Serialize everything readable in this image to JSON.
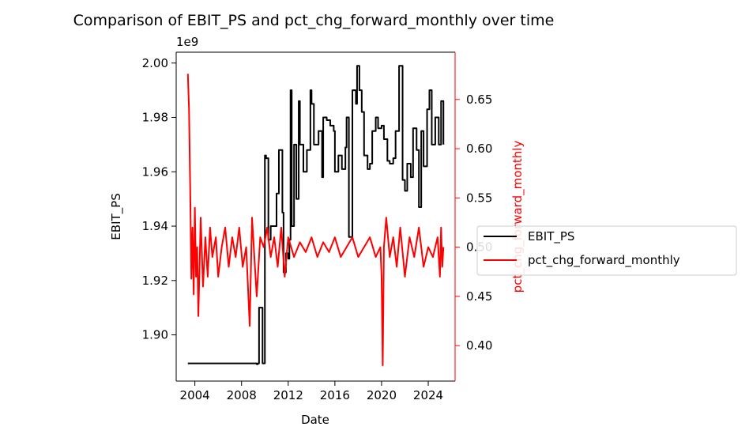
{
  "chart_data": {
    "type": "line",
    "title": "Comparison of EBIT_PS and pct_chg_forward_monthly over time",
    "xlabel": "Date",
    "x_ticks": [
      "2004",
      "2008",
      "2012",
      "2016",
      "2020",
      "2024"
    ],
    "x_tick_years": [
      2004,
      2008,
      2012,
      2016,
      2020,
      2024
    ],
    "xlim": [
      2002.4,
      2026.3
    ],
    "left_axis": {
      "label": "EBIT_PS",
      "offset_text": "1e9",
      "tick_labels": [
        "1.90",
        "1.92",
        "1.94",
        "1.96",
        "1.98",
        "2.00"
      ],
      "tick_values": [
        1.9,
        1.92,
        1.94,
        1.96,
        1.98,
        2.0
      ],
      "ylim": [
        1.883,
        2.004
      ],
      "color": "#000000"
    },
    "right_axis": {
      "label": "pct_chg_forward_monthly",
      "tick_labels": [
        "0.40",
        "0.45",
        "0.50",
        "0.55",
        "0.60",
        "0.65"
      ],
      "tick_values": [
        0.4,
        0.45,
        0.5,
        0.55,
        0.6,
        0.65
      ],
      "ylim": [
        0.364,
        0.698
      ],
      "color": "#ff0000"
    },
    "legend_placement": "right-outside",
    "series": [
      {
        "name": "EBIT_PS",
        "axis": "left",
        "color": "#000000",
        "x": [
          2003.4,
          2006.0,
          2008.0,
          2009.2,
          2009.3,
          2009.4,
          2009.5,
          2009.7,
          2009.8,
          2010.0,
          2010.1,
          2010.3,
          2010.5,
          2011.0,
          2011.1,
          2011.2,
          2011.5,
          2011.6,
          2011.8,
          2012.0,
          2012.1,
          2012.2,
          2012.3,
          2012.5,
          2012.7,
          2012.9,
          2013.0,
          2013.3,
          2013.6,
          2013.9,
          2014.0,
          2014.2,
          2014.6,
          2014.9,
          2015.0,
          2015.3,
          2015.6,
          2015.9,
          2016.0,
          2016.3,
          2016.6,
          2016.9,
          2017.0,
          2017.2,
          2017.5,
          2017.8,
          2017.9,
          2018.1,
          2018.3,
          2018.5,
          2018.8,
          2019.0,
          2019.2,
          2019.5,
          2019.7,
          2020.0,
          2020.2,
          2020.5,
          2020.7,
          2021.0,
          2021.2,
          2021.5,
          2021.8,
          2022.0,
          2022.2,
          2022.5,
          2022.7,
          2023.0,
          2023.2,
          2023.4,
          2023.6,
          2023.9,
          2024.1,
          2024.3,
          2024.6,
          2024.9,
          2025.1,
          2025.3
        ],
        "values": [
          1.8895,
          1.8895,
          1.8895,
          1.8895,
          1.8892,
          1.8895,
          1.91,
          1.91,
          1.8895,
          1.966,
          1.965,
          1.935,
          1.94,
          1.952,
          1.952,
          1.968,
          1.945,
          1.923,
          1.93,
          1.928,
          1.935,
          1.99,
          1.94,
          1.97,
          1.95,
          1.986,
          1.97,
          1.96,
          1.968,
          1.99,
          1.985,
          1.97,
          1.975,
          1.958,
          1.98,
          1.979,
          1.977,
          1.975,
          1.96,
          1.966,
          1.961,
          1.969,
          1.98,
          1.936,
          1.99,
          1.985,
          1.999,
          1.99,
          1.982,
          1.966,
          1.961,
          1.963,
          1.975,
          1.98,
          1.976,
          1.977,
          1.972,
          1.964,
          1.963,
          1.965,
          1.975,
          1.999,
          1.957,
          1.953,
          1.963,
          1.958,
          1.976,
          1.968,
          1.947,
          1.975,
          1.962,
          1.983,
          1.99,
          1.97,
          1.98,
          1.97,
          1.986,
          1.97
        ]
      },
      {
        "name": "pct_chg_forward_monthly",
        "axis": "right",
        "color": "#ff0000",
        "x": [
          2003.4,
          2003.5,
          2003.6,
          2003.7,
          2003.8,
          2003.9,
          2004.0,
          2004.1,
          2004.2,
          2004.3,
          2004.5,
          2004.7,
          2004.9,
          2005.1,
          2005.3,
          2005.5,
          2005.8,
          2006.0,
          2006.3,
          2006.6,
          2006.9,
          2007.2,
          2007.5,
          2007.8,
          2008.1,
          2008.4,
          2008.7,
          2008.9,
          2009.1,
          2009.3,
          2009.6,
          2009.9,
          2010.2,
          2010.5,
          2010.8,
          2011.1,
          2011.4,
          2011.7,
          2012.0,
          2012.5,
          2013.0,
          2013.5,
          2014.0,
          2014.5,
          2015.0,
          2015.5,
          2016.0,
          2016.5,
          2017.0,
          2017.5,
          2018.0,
          2018.5,
          2019.0,
          2019.5,
          2019.9,
          2020.0,
          2020.1,
          2020.2,
          2020.4,
          2020.7,
          2021.0,
          2021.3,
          2021.6,
          2022.0,
          2022.4,
          2022.8,
          2023.2,
          2023.6,
          2024.0,
          2024.4,
          2024.8,
          2025.0,
          2025.1,
          2025.2,
          2025.3
        ],
        "values": [
          0.676,
          0.64,
          0.56,
          0.468,
          0.52,
          0.452,
          0.54,
          0.47,
          0.5,
          0.43,
          0.53,
          0.46,
          0.51,
          0.47,
          0.52,
          0.49,
          0.51,
          0.47,
          0.5,
          0.52,
          0.48,
          0.51,
          0.49,
          0.52,
          0.48,
          0.5,
          0.42,
          0.53,
          0.49,
          0.45,
          0.51,
          0.5,
          0.52,
          0.49,
          0.51,
          0.48,
          0.52,
          0.47,
          0.51,
          0.49,
          0.505,
          0.495,
          0.51,
          0.49,
          0.505,
          0.495,
          0.51,
          0.49,
          0.5,
          0.51,
          0.49,
          0.5,
          0.51,
          0.49,
          0.5,
          0.47,
          0.38,
          0.5,
          0.53,
          0.49,
          0.51,
          0.48,
          0.52,
          0.47,
          0.51,
          0.49,
          0.52,
          0.48,
          0.5,
          0.49,
          0.51,
          0.47,
          0.52,
          0.48,
          0.5
        ]
      }
    ]
  }
}
